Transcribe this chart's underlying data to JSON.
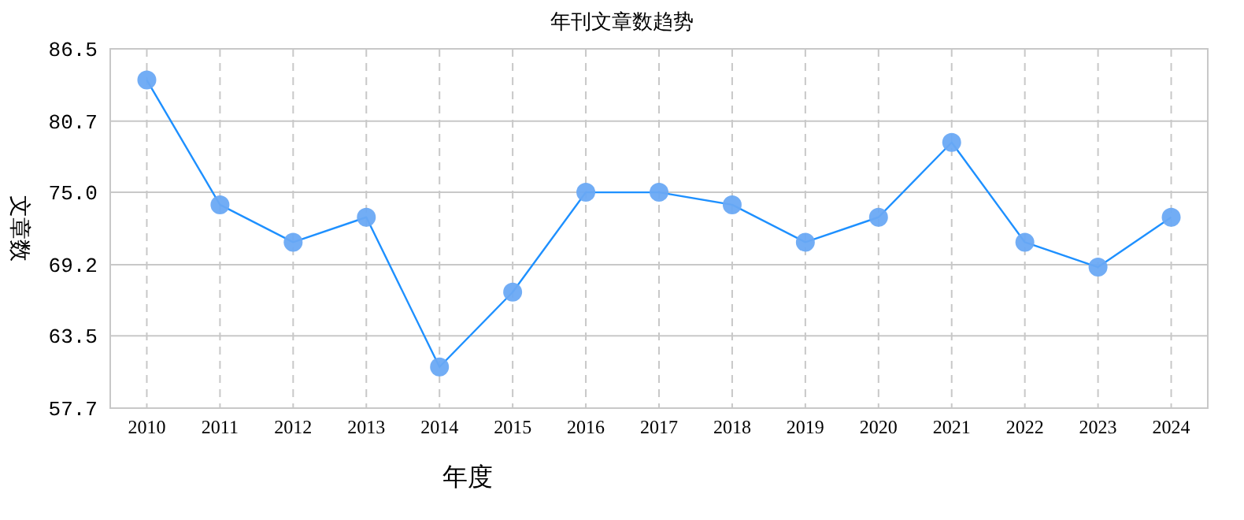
{
  "chart_data": {
    "type": "line",
    "title": "年刊文章数趋势",
    "xlabel": "年度",
    "ylabel": "文章数",
    "categories": [
      "2010",
      "2011",
      "2012",
      "2013",
      "2014",
      "2015",
      "2016",
      "2017",
      "2018",
      "2019",
      "2020",
      "2021",
      "2022",
      "2023",
      "2024"
    ],
    "series": [
      {
        "color": "#1e90ff",
        "values": [
          84,
          74,
          71,
          73,
          61,
          67,
          75,
          75,
          74,
          71,
          73,
          79,
          71,
          69,
          73
        ]
      }
    ],
    "ylim": [
      57.7,
      86.5
    ],
    "yticks": [
      57.7,
      63.5,
      {
        "value": 69.2,
        "label": "69.2"
      },
      {
        "value": 75.0,
        "label": "75.0"
      },
      80.7,
      86.5
    ],
    "grid": true,
    "marker": "circle",
    "line_style": "solid"
  }
}
